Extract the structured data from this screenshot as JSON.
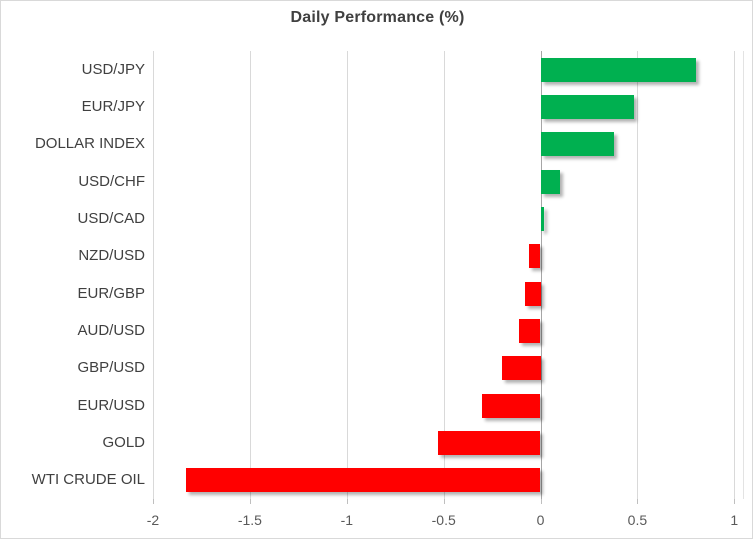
{
  "title": "Daily Performance (%)",
  "colors": {
    "positive": "#00B050",
    "negative": "#FF0000",
    "gridline": "#D9D9D9",
    "zero_line": "#A6A6A6",
    "title_text": "#404040",
    "category_text": "#404040",
    "tick_text": "#595959",
    "chart_border": "#D9D9D9",
    "background": "#FFFFFF"
  },
  "chart_data": {
    "type": "bar",
    "orientation": "horizontal",
    "title": "Daily Performance (%)",
    "categories": [
      "USD/JPY",
      "EUR/JPY",
      "DOLLAR INDEX",
      "USD/CHF",
      "USD/CAD",
      "NZD/USD",
      "EUR/GBP",
      "AUD/USD",
      "GBP/USD",
      "EUR/USD",
      "GOLD",
      "WTI CRUDE OIL"
    ],
    "values": [
      0.8,
      0.48,
      0.38,
      0.1,
      0.02,
      -0.06,
      -0.08,
      -0.11,
      -0.2,
      -0.3,
      -0.53,
      -1.83
    ],
    "xlabel": "",
    "ylabel": "",
    "xlim": [
      -2,
      1.05
    ],
    "xticks": [
      -2,
      -1.5,
      -1,
      -0.5,
      0,
      0.5,
      1
    ],
    "xtick_labels": [
      "-2",
      "-1.5",
      "-1",
      "-0.5",
      "0",
      "0.5",
      "1"
    ],
    "grid": true,
    "legend": false
  }
}
